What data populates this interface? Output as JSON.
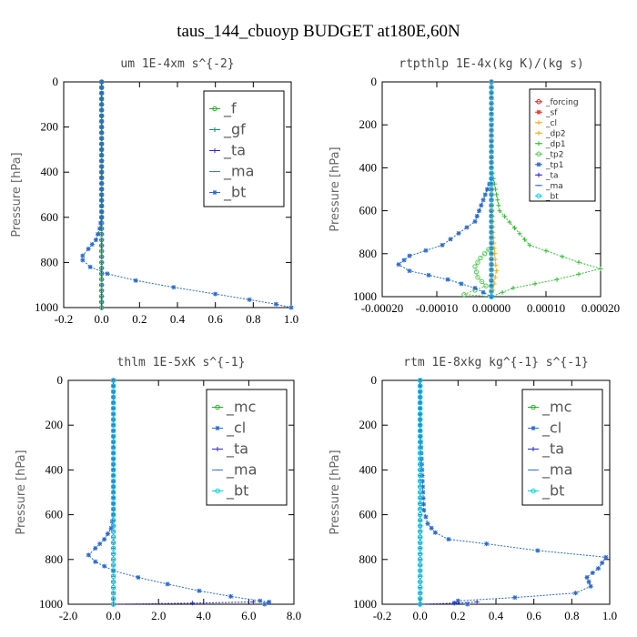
{
  "figure_title": "taus_144_cbuoyp  BUDGET at180E,60N",
  "colors": {
    "_f": "#22aa22",
    "_gf": "#1a8a6a",
    "_ta": "#2a2acc",
    "_ma": "#3a7acc",
    "_bt": "#00ccee",
    "_mc": "#22aa22",
    "_cl": "#2a6acc",
    "_forcing": "#dd2222",
    "_sf": "#ee3333",
    "_dp2": "#ffaa00",
    "_dp1": "#33bb33",
    "_tp2": "#55cc55",
    "_tp1": "#2a6acc"
  },
  "chart_data": [
    {
      "id": "um",
      "type": "line",
      "title": "um  1E-4xm s^{-2}",
      "ylabel": "Pressure [hPa]",
      "xlim": [
        -0.2,
        1.0
      ],
      "ylim": [
        1000,
        0
      ],
      "xticks": [
        "-0.2",
        "0.0",
        "0.2",
        "0.4",
        "0.6",
        "0.8",
        "1.0"
      ],
      "xtick_values": [
        -0.2,
        0.0,
        0.2,
        0.4,
        0.6,
        0.8,
        1.0
      ],
      "yticks": [
        "0",
        "200",
        "400",
        "600",
        "800",
        "1000"
      ],
      "ytick_values": [
        0,
        200,
        400,
        600,
        800,
        1000
      ],
      "legend": [
        "_f",
        "_gf",
        "_ta",
        "_ma",
        "_bt"
      ],
      "legend_style": "large",
      "series": [
        {
          "name": "_f",
          "color": "#22aa22",
          "marker": "circle",
          "points": [
            [
              0,
              0
            ],
            [
              0,
              1000
            ]
          ]
        },
        {
          "name": "_gf",
          "color": "#1a8a6a",
          "marker": "plus",
          "points": [
            [
              0,
              0
            ],
            [
              0,
              1000
            ]
          ]
        },
        {
          "name": "_ta",
          "color": "#2a2acc",
          "marker": "plus",
          "points": [
            [
              0,
              0
            ],
            [
              0,
              1000
            ]
          ]
        },
        {
          "name": "_ma",
          "color": "#3a7acc",
          "marker": "dash",
          "points": [
            [
              0,
              0
            ],
            [
              0,
              1000
            ]
          ]
        },
        {
          "name": "_bt",
          "color": "#2a6acc",
          "marker": "star",
          "points": [
            [
              0,
              0
            ],
            [
              0,
              100
            ],
            [
              0,
              200
            ],
            [
              0,
              300
            ],
            [
              0,
              400
            ],
            [
              0,
              500
            ],
            [
              0,
              600
            ],
            [
              -0.01,
              650
            ],
            [
              -0.03,
              700
            ],
            [
              -0.07,
              740
            ],
            [
              -0.1,
              770
            ],
            [
              -0.1,
              790
            ],
            [
              -0.06,
              820
            ],
            [
              0.03,
              850
            ],
            [
              0.18,
              880
            ],
            [
              0.38,
              910
            ],
            [
              0.6,
              940
            ],
            [
              0.78,
              965
            ],
            [
              0.92,
              985
            ],
            [
              1.0,
              1000
            ]
          ]
        }
      ]
    },
    {
      "id": "rtpthlp",
      "type": "line",
      "title": "rtpthlp  1E-4x(kg K)/(kg s)",
      "ylabel": "Pressure [hPa]",
      "xlim": [
        -0.0002,
        0.0002
      ],
      "ylim": [
        1000,
        0
      ],
      "xticks": [
        "-0.00020",
        "-0.00010",
        "0.00000",
        "0.00010",
        "0.00020"
      ],
      "xtick_values": [
        -0.0002,
        -0.0001,
        0.0,
        0.0001,
        0.0002
      ],
      "yticks": [
        "0",
        "200",
        "400",
        "600",
        "800",
        "1000"
      ],
      "ytick_values": [
        0,
        200,
        400,
        600,
        800,
        1000
      ],
      "legend": [
        "_forcing",
        "_sf",
        "_cl",
        "_dp2",
        "_dp1",
        "_tp2",
        "_tp1",
        "_ta",
        "_ma",
        "_bt"
      ],
      "legend_style": "small",
      "series": [
        {
          "name": "_forcing",
          "color": "#dd2222",
          "marker": "circle",
          "points": [
            [
              0,
              0
            ],
            [
              0,
              1000
            ]
          ]
        },
        {
          "name": "_sf",
          "color": "#ee3333",
          "marker": "star",
          "points": [
            [
              0,
              0
            ],
            [
              0,
              1000
            ]
          ]
        },
        {
          "name": "_cl",
          "color": "#ffaa00",
          "marker": "plus",
          "points": [
            [
              0,
              0
            ],
            [
              0,
              1000
            ]
          ]
        },
        {
          "name": "_dp2",
          "color": "#ffaa00",
          "marker": "plus",
          "points": [
            [
              0,
              500
            ],
            [
              3e-06,
              700
            ],
            [
              6e-06,
              800
            ],
            [
              9e-06,
              880
            ],
            [
              5e-06,
              940
            ],
            [
              0,
              1000
            ]
          ]
        },
        {
          "name": "_dp1",
          "color": "#33bb33",
          "marker": "plus",
          "points": [
            [
              0,
              400
            ],
            [
              1.5e-05,
              600
            ],
            [
              7e-05,
              760
            ],
            [
              0.00016,
              840
            ],
            [
              0.0002,
              870
            ],
            [
              0.00012,
              920
            ],
            [
              4e-05,
              960
            ],
            [
              0,
              1000
            ]
          ]
        },
        {
          "name": "_tp2",
          "color": "#55cc55",
          "marker": "circle",
          "points": [
            [
              -5e-06,
              780
            ],
            [
              -2e-05,
              820
            ],
            [
              -3e-05,
              860
            ],
            [
              -2.5e-05,
              910
            ],
            [
              -1e-05,
              950
            ],
            [
              -5e-05,
              990
            ],
            [
              0,
              1000
            ]
          ]
        },
        {
          "name": "_tp1",
          "color": "#2a6acc",
          "marker": "star",
          "points": [
            [
              0,
              450
            ],
            [
              -3e-05,
              650
            ],
            [
              -9e-05,
              760
            ],
            [
              -0.00015,
              810
            ],
            [
              -0.00017,
              850
            ],
            [
              -0.00015,
              880
            ],
            [
              -8e-05,
              920
            ],
            [
              -3e-05,
              960
            ],
            [
              0,
              1000
            ]
          ]
        },
        {
          "name": "_ta",
          "color": "#2a2acc",
          "marker": "plus",
          "points": [
            [
              0,
              0
            ],
            [
              0,
              1000
            ]
          ]
        },
        {
          "name": "_ma",
          "color": "#3a7acc",
          "marker": "dash",
          "points": [
            [
              0,
              0
            ],
            [
              0,
              1000
            ]
          ]
        },
        {
          "name": "_bt",
          "color": "#00ccee",
          "marker": "circle",
          "points": [
            [
              0,
              0
            ],
            [
              0,
              1000
            ]
          ]
        }
      ]
    },
    {
      "id": "thlm",
      "type": "line",
      "title": "thlm  1E-5xK s^{-1}",
      "ylabel": "Pressure [hPa]",
      "xlim": [
        -2.0,
        8.0
      ],
      "ylim": [
        1000,
        0
      ],
      "xticks": [
        "-2.0",
        "0.0",
        "2.0",
        "4.0",
        "6.0",
        "8.0"
      ],
      "xtick_values": [
        -2.0,
        0.0,
        2.0,
        4.0,
        6.0,
        8.0
      ],
      "yticks": [
        "0",
        "200",
        "400",
        "600",
        "800",
        "1000"
      ],
      "ytick_values": [
        0,
        200,
        400,
        600,
        800,
        1000
      ],
      "legend": [
        "_mc",
        "_cl",
        "_ta",
        "_ma",
        "_bt"
      ],
      "legend_style": "large",
      "series": [
        {
          "name": "_mc",
          "color": "#22aa22",
          "marker": "circle",
          "points": [
            [
              0,
              0
            ],
            [
              0,
              1000
            ]
          ]
        },
        {
          "name": "_cl",
          "color": "#2a6acc",
          "marker": "star",
          "points": [
            [
              0,
              0
            ],
            [
              0,
              100
            ],
            [
              0,
              200
            ],
            [
              0,
              300
            ],
            [
              0,
              400
            ],
            [
              0,
              500
            ],
            [
              0,
              600
            ],
            [
              -0.1,
              660
            ],
            [
              -0.4,
              710
            ],
            [
              -0.8,
              750
            ],
            [
              -1.1,
              780
            ],
            [
              -0.8,
              810
            ],
            [
              0,
              850
            ],
            [
              1.1,
              880
            ],
            [
              2.4,
              910
            ],
            [
              3.8,
              940
            ],
            [
              5.2,
              965
            ],
            [
              6.5,
              985
            ],
            [
              6.9,
              990
            ],
            [
              6.7,
              1000
            ]
          ]
        },
        {
          "name": "_ta",
          "color": "#2a2acc",
          "marker": "plus",
          "points": [
            [
              0,
              1000
            ],
            [
              3.5,
              995
            ],
            [
              6.2,
              990
            ]
          ]
        },
        {
          "name": "_ma",
          "color": "#3a7acc",
          "marker": "dash",
          "points": [
            [
              0,
              0
            ],
            [
              0,
              1000
            ]
          ]
        },
        {
          "name": "_bt",
          "color": "#00ccee",
          "marker": "circle",
          "points": [
            [
              0,
              0
            ],
            [
              0,
              1000
            ]
          ]
        }
      ]
    },
    {
      "id": "rtm",
      "type": "line",
      "title": "rtm  1E-8xkg kg^{-1} s^{-1}",
      "ylabel": "Pressure [hPa]",
      "xlim": [
        -0.2,
        1.0
      ],
      "ylim": [
        1000,
        0
      ],
      "xticks": [
        "-0.2",
        "0.0",
        "0.2",
        "0.4",
        "0.6",
        "0.8",
        "1.0"
      ],
      "xtick_values": [
        -0.2,
        0.0,
        0.2,
        0.4,
        0.6,
        0.8,
        1.0
      ],
      "yticks": [
        "0",
        "200",
        "400",
        "600",
        "800",
        "1000"
      ],
      "ytick_values": [
        0,
        200,
        400,
        600,
        800,
        1000
      ],
      "legend": [
        "_mc",
        "_cl",
        "_ta",
        "_ma",
        "_bt"
      ],
      "legend_style": "large",
      "series": [
        {
          "name": "_mc",
          "color": "#22aa22",
          "marker": "circle",
          "points": [
            [
              0,
              0
            ],
            [
              0,
              1000
            ]
          ]
        },
        {
          "name": "_cl",
          "color": "#2a6acc",
          "marker": "star",
          "points": [
            [
              0,
              0
            ],
            [
              0,
              200
            ],
            [
              0.01,
              400
            ],
            [
              0.015,
              500
            ],
            [
              0.02,
              580
            ],
            [
              0.04,
              640
            ],
            [
              0.08,
              680
            ],
            [
              0.15,
              710
            ],
            [
              0.35,
              730
            ],
            [
              0.62,
              760
            ],
            [
              0.98,
              790
            ],
            [
              0.94,
              840
            ],
            [
              0.88,
              880
            ],
            [
              0.9,
              920
            ],
            [
              0.82,
              950
            ],
            [
              0.5,
              970
            ],
            [
              0.2,
              985
            ],
            [
              0.18,
              995
            ],
            [
              0.25,
              1000
            ]
          ]
        },
        {
          "name": "_ta",
          "color": "#2a2acc",
          "marker": "plus",
          "points": [
            [
              0,
              1000
            ],
            [
              0.18,
              995
            ],
            [
              0.3,
              990
            ]
          ]
        },
        {
          "name": "_ma",
          "color": "#3a7acc",
          "marker": "dash",
          "points": [
            [
              0,
              0
            ],
            [
              0,
              1000
            ]
          ]
        },
        {
          "name": "_bt",
          "color": "#00ccee",
          "marker": "circle",
          "points": [
            [
              0,
              0
            ],
            [
              0,
              1000
            ]
          ]
        }
      ]
    }
  ]
}
